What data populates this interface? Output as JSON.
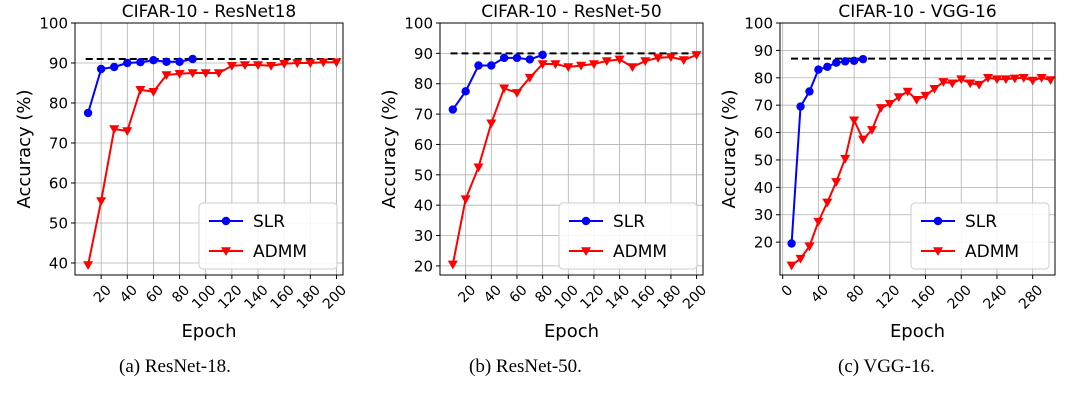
{
  "chart_data": [
    {
      "type": "line",
      "title": "CIFAR-10 - ResNet18",
      "xlabel": "Epoch",
      "ylabel": "Accuracy (%)",
      "xlim": [
        0,
        205
      ],
      "ylim": [
        37,
        100
      ],
      "xticks": [
        20,
        40,
        60,
        80,
        100,
        120,
        140,
        160,
        180,
        200
      ],
      "yticks": [
        40,
        50,
        60,
        70,
        80,
        90,
        100
      ],
      "grid": true,
      "legend_position": "lower-right",
      "reference_line": 91,
      "series": [
        {
          "name": "SLR",
          "color": "#0000ff",
          "marker": "circle",
          "x": [
            10,
            20,
            30,
            40,
            50,
            60,
            70,
            80,
            90
          ],
          "y": [
            77.5,
            88.5,
            89.0,
            90.0,
            90.2,
            90.7,
            90.3,
            90.3,
            91.0
          ]
        },
        {
          "name": "ADMM",
          "color": "#ff0000",
          "marker": "triangle-down",
          "x": [
            10,
            20,
            30,
            40,
            50,
            60,
            70,
            80,
            90,
            100,
            110,
            120,
            130,
            140,
            150,
            160,
            170,
            180,
            190,
            200
          ],
          "y": [
            39.5,
            55.5,
            73.5,
            73.0,
            83.3,
            82.8,
            87.0,
            87.3,
            87.5,
            87.5,
            87.5,
            89.3,
            89.5,
            89.5,
            89.3,
            89.8,
            90.0,
            90.0,
            90.2,
            90.2
          ]
        }
      ]
    },
    {
      "type": "line",
      "title": "CIFAR-10 - ResNet-50",
      "xlabel": "Epoch",
      "ylabel": "Accuracy (%)",
      "xlim": [
        0,
        205
      ],
      "ylim": [
        17,
        100
      ],
      "xticks": [
        20,
        40,
        60,
        80,
        100,
        120,
        140,
        160,
        180,
        200
      ],
      "yticks": [
        20,
        30,
        40,
        50,
        60,
        70,
        80,
        90,
        100
      ],
      "grid": true,
      "legend_position": "lower-right",
      "reference_line": 90,
      "series": [
        {
          "name": "SLR",
          "color": "#0000ff",
          "marker": "circle",
          "x": [
            10,
            20,
            30,
            40,
            50,
            60,
            70,
            80
          ],
          "y": [
            71.5,
            77.5,
            86.0,
            86.0,
            88.5,
            88.5,
            88.0,
            89.5
          ]
        },
        {
          "name": "ADMM",
          "color": "#ff0000",
          "marker": "triangle-down",
          "x": [
            10,
            20,
            30,
            40,
            50,
            60,
            70,
            80,
            90,
            100,
            110,
            120,
            130,
            140,
            150,
            160,
            170,
            180,
            190,
            200
          ],
          "y": [
            20.5,
            42.0,
            52.5,
            67.0,
            78.5,
            77.0,
            82.0,
            86.5,
            86.5,
            85.5,
            86.0,
            86.5,
            87.5,
            88.0,
            85.5,
            87.5,
            88.5,
            88.8,
            87.8,
            89.5
          ]
        }
      ]
    },
    {
      "type": "line",
      "title": "CIFAR-10 - VGG-16",
      "xlabel": "Epoch",
      "ylabel": "Accuracy (%)",
      "xlim": [
        -3,
        305
      ],
      "ylim": [
        8,
        100
      ],
      "xticks": [
        0,
        40,
        80,
        120,
        160,
        200,
        240,
        280
      ],
      "yticks": [
        20,
        30,
        40,
        50,
        60,
        70,
        80,
        90,
        100
      ],
      "grid": true,
      "legend_position": "lower-right",
      "reference_line": 87,
      "series": [
        {
          "name": "SLR",
          "color": "#0000ff",
          "marker": "circle",
          "x": [
            10,
            20,
            30,
            40,
            50,
            60,
            70,
            80,
            90
          ],
          "y": [
            19.5,
            69.5,
            75.0,
            83.0,
            84.0,
            85.5,
            86.0,
            86.2,
            86.8
          ]
        },
        {
          "name": "ADMM",
          "color": "#ff0000",
          "marker": "triangle-down",
          "x": [
            10,
            20,
            30,
            40,
            50,
            60,
            70,
            80,
            90,
            100,
            110,
            120,
            130,
            140,
            150,
            160,
            170,
            180,
            190,
            200,
            210,
            220,
            230,
            240,
            250,
            260,
            270,
            280,
            290,
            300
          ],
          "y": [
            11.5,
            14.0,
            18.5,
            27.5,
            34.5,
            42.0,
            50.5,
            64.5,
            57.5,
            61.0,
            69.0,
            70.5,
            73.0,
            75.0,
            72.0,
            73.5,
            76.0,
            78.5,
            78.0,
            79.5,
            78.0,
            77.5,
            80.0,
            79.5,
            79.5,
            79.8,
            80.0,
            79.0,
            80.0,
            79.2
          ]
        }
      ]
    }
  ],
  "captions": [
    "(a) ResNet-18.",
    "(b) ResNet-50.",
    "(c) VGG-16."
  ]
}
